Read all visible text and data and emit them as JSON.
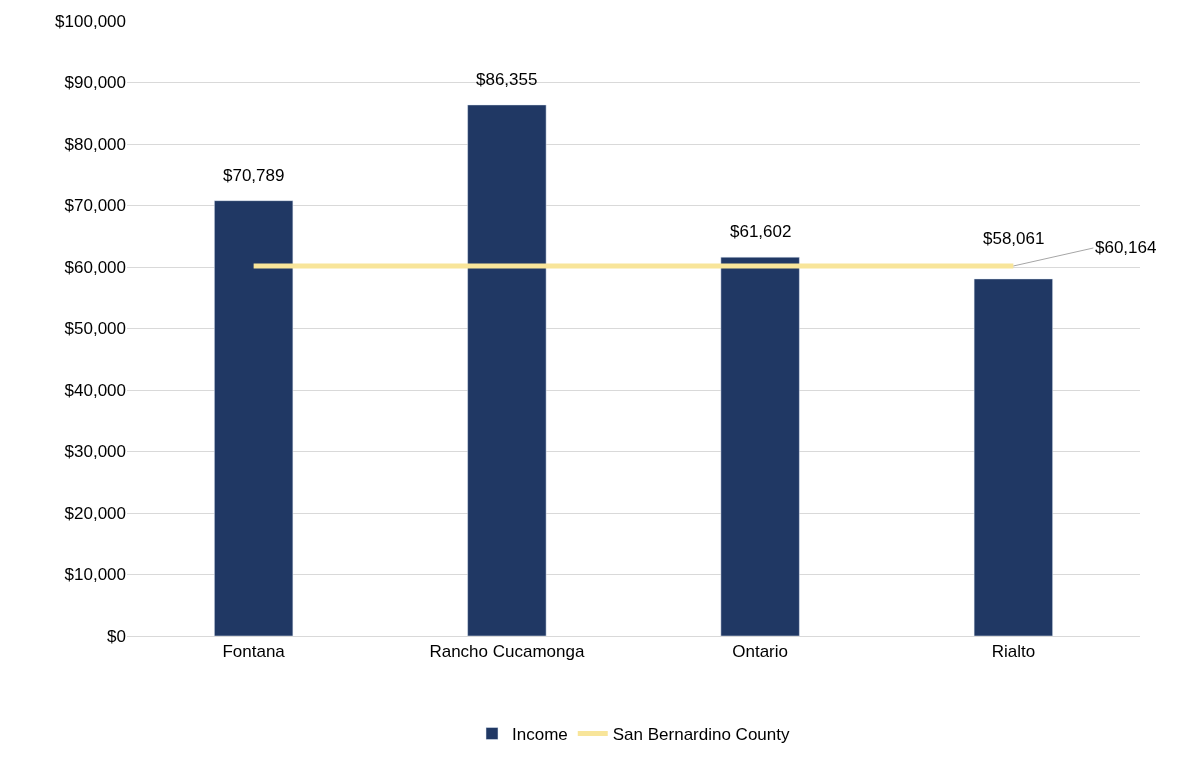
{
  "chart_data": {
    "type": "bar",
    "categories": [
      "Fontana",
      "Rancho Cucamonga",
      "Ontario",
      "Rialto"
    ],
    "series": [
      {
        "name": "Income",
        "color": "#203864",
        "values": [
          70789,
          86355,
          61602,
          58061
        ],
        "value_labels": [
          "$70,789",
          "$86,355",
          "$61,602",
          "$58,061"
        ]
      },
      {
        "name": "San Bernardino County",
        "type": "line",
        "color": "#f8e59a",
        "values": [
          60164,
          60164,
          60164,
          60164
        ],
        "value_labels": [
          null,
          null,
          null,
          "$60,164"
        ]
      }
    ],
    "ylim": [
      0,
      100000
    ],
    "yticks": [
      {
        "value": 0,
        "label": "$0"
      },
      {
        "value": 10000,
        "label": "$10,000"
      },
      {
        "value": 20000,
        "label": "$20,000"
      },
      {
        "value": 30000,
        "label": "$30,000"
      },
      {
        "value": 40000,
        "label": "$40,000"
      },
      {
        "value": 50000,
        "label": "$50,000"
      },
      {
        "value": 60000,
        "label": "$60,000"
      },
      {
        "value": 70000,
        "label": "$70,000"
      },
      {
        "value": 80000,
        "label": "$80,000"
      },
      {
        "value": 90000,
        "label": "$90,000"
      },
      {
        "value": 100000,
        "label": "$100,000"
      }
    ],
    "grid": "y",
    "legend": "bottom"
  }
}
